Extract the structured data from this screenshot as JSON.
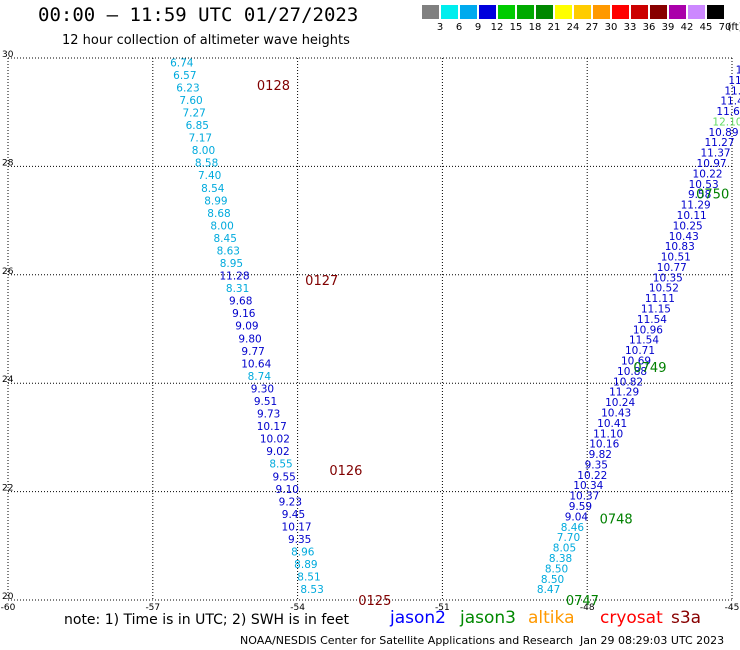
{
  "header": {
    "title": "00:00 – 11:59 UTC 01/27/2023",
    "subtitle": "12 hour collection of altimeter wave heights"
  },
  "legend": {
    "unit_label": "(ft)",
    "bins": [
      {
        "label": "3",
        "color": "#808080"
      },
      {
        "label": "6",
        "color": "#00eeee"
      },
      {
        "label": "9",
        "color": "#00aaee"
      },
      {
        "label": "12",
        "color": "#0000dd"
      },
      {
        "label": "15",
        "color": "#00cc00"
      },
      {
        "label": "18",
        "color": "#00aa00"
      },
      {
        "label": "21",
        "color": "#008800"
      },
      {
        "label": "24",
        "color": "#ffff00"
      },
      {
        "label": "27",
        "color": "#ffcc00"
      },
      {
        "label": "30",
        "color": "#ff9900"
      },
      {
        "label": "33",
        "color": "#ff0000"
      },
      {
        "label": "36",
        "color": "#cc0000"
      },
      {
        "label": "39",
        "color": "#880000"
      },
      {
        "label": "42",
        "color": "#aa00aa"
      },
      {
        "label": "45",
        "color": "#cc88ff"
      },
      {
        "label": "70",
        "color": "#000000"
      }
    ]
  },
  "map": {
    "xlim": [
      -60,
      -45
    ],
    "ylim": [
      20,
      30
    ],
    "x_ticks": [
      "-60",
      "-57",
      "-54",
      "-51",
      "-48",
      "-45"
    ],
    "y_ticks": [
      "30",
      "28",
      "26",
      "24",
      "22",
      "20"
    ],
    "grid": true
  },
  "time_labels": [
    {
      "text": "0128",
      "color": "#800000"
    },
    {
      "text": "0127",
      "color": "#800000"
    },
    {
      "text": "0126",
      "color": "#800000"
    },
    {
      "text": "0125",
      "color": "#800000"
    },
    {
      "text": "0750",
      "color": "#008000"
    },
    {
      "text": "0749",
      "color": "#008000"
    },
    {
      "text": "0748",
      "color": "#008000"
    },
    {
      "text": "0747",
      "color": "#008000"
    }
  ],
  "chart_data": [
    {
      "type": "scatter",
      "title": "00:00 – 11:59 UTC 01/27/2023",
      "series": [
        {
          "name": "cryosat",
          "color_small": "#00aadd",
          "color_large": "#0000cc",
          "values": [
            6.74,
            6.57,
            6.23,
            7.6,
            7.27,
            6.85,
            7.17,
            8.0,
            8.58,
            7.4,
            8.54,
            8.99,
            8.68,
            8.0,
            8.45,
            8.63,
            8.95,
            11.28,
            8.31,
            9.68,
            9.16,
            9.09,
            9.8,
            9.77,
            10.64,
            8.74,
            9.3,
            9.51,
            9.73,
            10.17,
            10.02,
            9.02,
            8.55,
            9.55,
            9.1,
            9.23,
            9.45,
            10.17,
            9.35,
            8.96,
            8.89,
            8.51,
            8.53
          ]
        },
        {
          "name": "jason3",
          "color_small": "#00aadd",
          "color_large": "#0000cc",
          "values": [
            12,
            11.2,
            11.17,
            11.69,
            11.48,
            11.67,
            12.1,
            10.89,
            11.27,
            11.37,
            10.97,
            10.22,
            10.53,
            9.58,
            11.29,
            10.11,
            10.25,
            10.43,
            10.83,
            10.51,
            10.77,
            10.35,
            10.52,
            11.11,
            11.15,
            11.54,
            10.96,
            11.54,
            10.71,
            10.69,
            10.88,
            10.82,
            11.29,
            10.24,
            10.43,
            10.41,
            11.1,
            10.16,
            9.82,
            9.35,
            10.22,
            10.34,
            10.37,
            9.59,
            9.04,
            8.46,
            7.7,
            8.05,
            8.38,
            8.5,
            8.5,
            8.47
          ]
        }
      ]
    }
  ],
  "footer": {
    "note": "note:  1) Time is in UTC; 2) SWH is in feet",
    "satellites": [
      {
        "name": "jason2",
        "color": "#0000ff"
      },
      {
        "name": "jason3",
        "color": "#008800"
      },
      {
        "name": "altika",
        "color": "#ff9900"
      },
      {
        "name": "cryosat",
        "color": "#ff0000"
      },
      {
        "name": "s3a",
        "color": "#880000"
      }
    ],
    "credit": "NOAA/NESDIS Center for Satellite Applications and Research",
    "generated": "Jan 29 08:29:03 UTC 2023"
  }
}
